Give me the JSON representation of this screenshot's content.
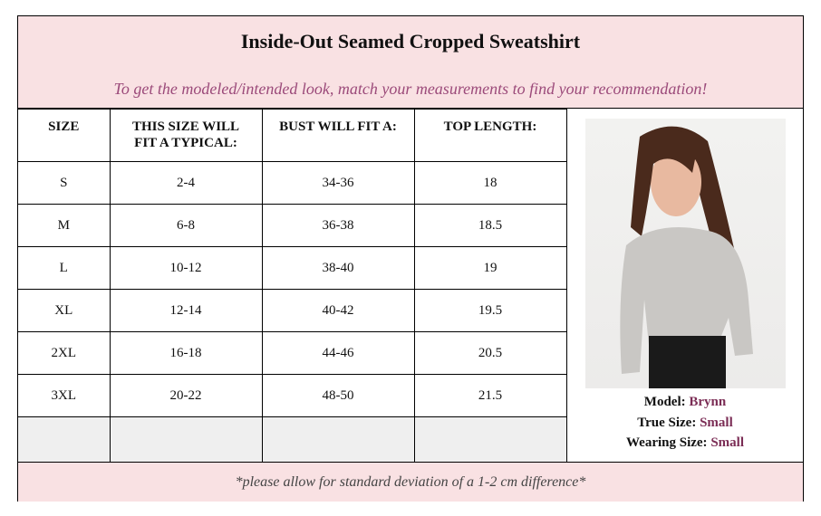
{
  "header": {
    "title": "Inside-Out Seamed Cropped Sweatshirt",
    "subtitle": "To get the modeled/intended look, match your measurements to find your recommendation!"
  },
  "table": {
    "columns": [
      "SIZE",
      "THIS SIZE WILL FIT A TYPICAL:",
      "BUST WILL FIT A:",
      "TOP LENGTH:"
    ],
    "rows": [
      [
        "S",
        "2-4",
        "34-36",
        "18"
      ],
      [
        "M",
        "6-8",
        "36-38",
        "18.5"
      ],
      [
        "L",
        "10-12",
        "38-40",
        "19"
      ],
      [
        "XL",
        "12-14",
        "40-42",
        "19.5"
      ],
      [
        "2XL",
        "16-18",
        "44-46",
        "20.5"
      ],
      [
        "3XL",
        "20-22",
        "48-50",
        "21.5"
      ]
    ]
  },
  "model": {
    "model_label": "Model:",
    "model_name": "Brynn",
    "true_size_label": "True Size:",
    "true_size": "Small",
    "wearing_size_label": "Wearing Size:",
    "wearing_size": "Small"
  },
  "footer": {
    "note": "*please allow for standard deviation of a 1-2 cm difference*"
  },
  "colors": {
    "pink_bg": "#f9e1e3",
    "subtitle": "#9b4a7a",
    "accent": "#7b2d55"
  }
}
